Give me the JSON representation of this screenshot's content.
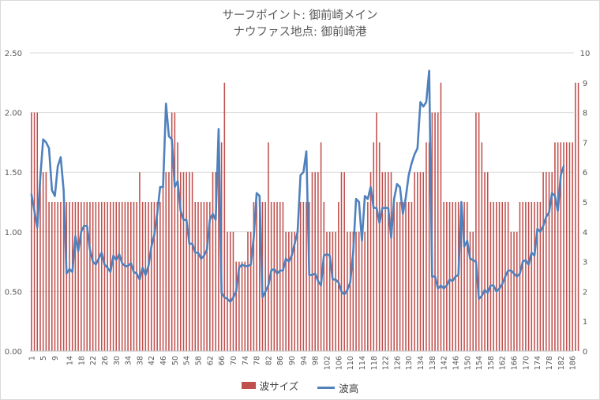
{
  "chart_data": {
    "type": "bar+line",
    "title": "サーフポイント: 御前崎メイン",
    "subtitle": "ナウファス地点: 御前崎港",
    "x": {
      "categories_count": 186,
      "tick_labels": [
        "1",
        "5",
        "9",
        "14",
        "18",
        "22",
        "26",
        "30",
        "34",
        "38",
        "42",
        "46",
        "50",
        "54",
        "58",
        "62",
        "66",
        "70",
        "74",
        "78",
        "82",
        "86",
        "90",
        "94",
        "98",
        "102",
        "106",
        "110",
        "114",
        "118",
        "122",
        "126",
        "130",
        "134",
        "138",
        "142",
        "146",
        "150",
        "154",
        "158",
        "162",
        "166",
        "170",
        "174",
        "178",
        "182",
        "186"
      ]
    },
    "y_left": {
      "min": 0,
      "max": 2.5,
      "ticks": [
        "0.00",
        "0.50",
        "1.00",
        "1.50",
        "2.00",
        "2.50"
      ]
    },
    "y_right": {
      "min": 0,
      "max": 10,
      "ticks": [
        "0",
        "1",
        "2",
        "3",
        "4",
        "5",
        "6",
        "7",
        "8",
        "9",
        "10"
      ]
    },
    "grid": "horizontal",
    "legend_position": "bottom",
    "series": [
      {
        "name": "波サイズ",
        "kind": "bar",
        "axis": "left",
        "color": "#c0504d",
        "values": [
          2,
          2,
          2,
          1.5,
          1.5,
          1.5,
          1.25,
          1.25,
          1.25,
          1.25,
          1.25,
          1.25,
          1.25,
          1.25,
          1.25,
          1.25,
          1.25,
          1.25,
          1.25,
          1.25,
          1.25,
          1.25,
          1.25,
          1.25,
          1.25,
          1.25,
          1.25,
          1.25,
          1.25,
          1.25,
          1.25,
          1.25,
          1.25,
          1.25,
          1.25,
          1.25,
          1.25,
          1.5,
          1.25,
          1.25,
          1.25,
          1.25,
          1.25,
          1.25,
          1.25,
          1.5,
          1.5,
          1.5,
          2,
          2,
          1.75,
          1.5,
          1.5,
          1.5,
          1.5,
          1.5,
          1.25,
          1.25,
          1.25,
          1.25,
          1.25,
          1.25,
          1.5,
          1.5,
          1.5,
          1.75,
          2.25,
          1,
          1,
          1,
          0.75,
          0.75,
          0.75,
          0.75,
          1,
          1,
          1.25,
          1.25,
          1.25,
          1.25,
          1.25,
          1.75,
          1.25,
          1.25,
          1.25,
          1.25,
          1.25,
          1,
          1,
          1,
          1,
          1,
          1.25,
          1.25,
          1.25,
          1.25,
          1.5,
          1.5,
          1.5,
          1.75,
          1.25,
          1,
          1,
          1,
          1,
          1.25,
          1.5,
          1.5,
          1,
          1,
          1,
          1,
          1,
          1,
          1,
          1.25,
          1.5,
          1.75,
          2,
          1.75,
          1.5,
          1.5,
          1.5,
          1.5,
          1.25,
          1.25,
          1.25,
          1.25,
          1.25,
          1.25,
          1.25,
          1.5,
          1.5,
          1.5,
          1.5,
          1.75,
          1.75,
          2,
          2,
          2,
          2.25,
          1.25,
          1.25,
          1.25,
          1.25,
          1.25,
          1.25,
          1.25,
          1.25,
          1.25,
          1,
          1,
          2,
          2,
          1.75,
          1.5,
          1.5,
          1.25,
          1.25,
          1.25,
          1.25,
          1.25,
          1.25,
          1.25,
          1,
          1,
          1,
          1.25,
          1.25,
          1.25,
          1.25,
          1.25,
          1.25,
          1.25,
          1.25,
          1.5,
          1.5,
          1.5,
          1.5,
          1.75,
          1.75,
          1.75,
          1.75,
          1.75,
          1.75,
          1.75,
          2.25,
          2.25
        ]
      },
      {
        "name": "波高",
        "kind": "line",
        "axis": "right",
        "color": "#4f81bd",
        "values": [
          5.25,
          4.7,
          4.15,
          5.8,
          7.1,
          7,
          6.8,
          5.4,
          5.2,
          6.2,
          6.5,
          5.4,
          2.6,
          2.75,
          2.65,
          3.85,
          3.35,
          4.0,
          4.2,
          4.2,
          3.4,
          3.0,
          2.9,
          3.1,
          3.3,
          2.9,
          2.8,
          2.65,
          3.2,
          3.05,
          3.25,
          2.95,
          2.85,
          2.85,
          2.95,
          2.65,
          2.6,
          2.4,
          2.8,
          2.55,
          2.85,
          3.5,
          3.9,
          4.6,
          5.5,
          5.5,
          8.3,
          7.2,
          7.1,
          5.5,
          5.7,
          4.7,
          4.4,
          4.4,
          3.6,
          3.6,
          3.3,
          3.3,
          3.1,
          3.2,
          3.4,
          4.4,
          4.6,
          4.4,
          7.45,
          1.95,
          1.8,
          1.75,
          1.65,
          1.8,
          2.0,
          2.8,
          2.9,
          2.85,
          2.85,
          2.9,
          3.8,
          5.3,
          5.2,
          1.8,
          2.0,
          2.2,
          2.7,
          2.75,
          2.6,
          2.7,
          2.7,
          3.1,
          3.0,
          3.2,
          3.6,
          4.0,
          5.9,
          6.0,
          6.7,
          2.55,
          2.55,
          2.6,
          2.35,
          2.2,
          3.2,
          3.25,
          3.2,
          2.4,
          2.4,
          2.3,
          2.0,
          1.9,
          2.05,
          2.3,
          3.3,
          5.1,
          5.0,
          3.7,
          5.2,
          5.1,
          5.5,
          4.8,
          4.8,
          4.3,
          4.8,
          4.8,
          4.8,
          3.8,
          5.1,
          5.6,
          5.5,
          4.6,
          5.15,
          5.9,
          6.3,
          6.6,
          6.8,
          8.35,
          8.2,
          8.35,
          9.4,
          2.5,
          2.5,
          2.1,
          2.2,
          2.1,
          2.2,
          2.4,
          2.35,
          2.5,
          2.55,
          5.0,
          3.5,
          3.7,
          3.1,
          3.05,
          3.0,
          1.75,
          1.85,
          2.05,
          1.95,
          2.2,
          2.2,
          2.0,
          2.1,
          2.25,
          2.5,
          2.7,
          2.7,
          2.6,
          2.5,
          2.6,
          3.0,
          3.05,
          2.9,
          3.3,
          3.2,
          4.1,
          4.0,
          4.2,
          4.5,
          4.65,
          5.3,
          5.2,
          4.7,
          5.9,
          6.2
        ]
      }
    ]
  }
}
